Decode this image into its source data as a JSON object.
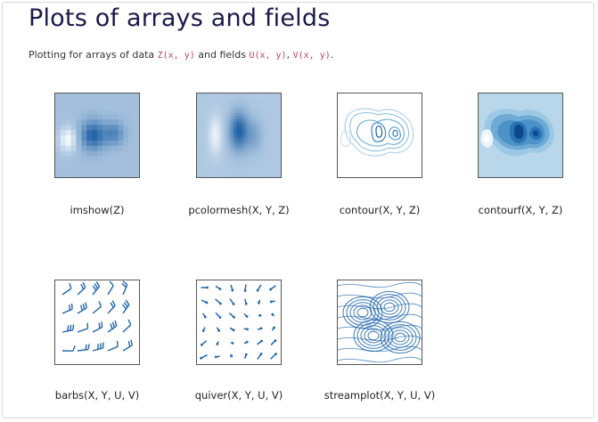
{
  "page": {
    "title": "Plots of arrays and fields",
    "subtitle": {
      "prefix": "Plotting for arrays of data ",
      "code1": "Z(x, y)",
      "middle": " and fields ",
      "code2": "U(x, y)",
      "sep": ", ",
      "code3": "V(x, y)",
      "suffix": "."
    }
  },
  "gallery": [
    {
      "caption": "imshow(Z)",
      "icon": "imshow-thumbnail"
    },
    {
      "caption": "pcolormesh(X, Y, Z)",
      "icon": "pcolormesh-thumbnail"
    },
    {
      "caption": "contour(X, Y, Z)",
      "icon": "contour-thumbnail"
    },
    {
      "caption": "contourf(X, Y, Z)",
      "icon": "contourf-thumbnail"
    },
    {
      "caption": "barbs(X, Y, U, V)",
      "icon": "barbs-thumbnail"
    },
    {
      "caption": "quiver(X, Y, U, V)",
      "icon": "quiver-thumbnail"
    },
    {
      "caption": "streamplot(X, Y, U, V)",
      "icon": "streamplot-thumbnail"
    }
  ],
  "colors": {
    "accent": "#2166ac",
    "code": "#c0405a",
    "title": "#1a1a4a"
  }
}
